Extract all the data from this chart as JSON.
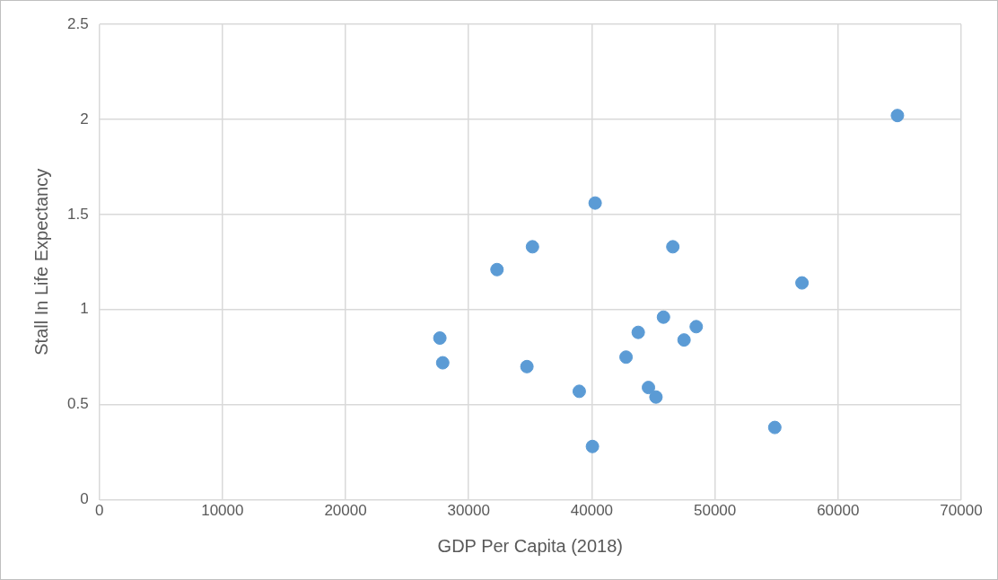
{
  "chart_data": {
    "type": "scatter",
    "xlabel": "GDP Per Capita (2018)",
    "ylabel": "Stall In Life Expectancy",
    "series": [
      {
        "color": "#5b9bd5",
        "x": [
          27660,
          27890,
          32300,
          35180,
          34730,
          38980,
          40270,
          40050,
          42780,
          43770,
          44600,
          45210,
          45820,
          46580,
          47490,
          48480,
          54860,
          57070,
          64820
        ],
        "values": [
          0.85,
          0.72,
          1.21,
          1.33,
          0.7,
          0.57,
          1.56,
          0.28,
          0.75,
          0.88,
          0.59,
          0.54,
          0.96,
          1.33,
          0.84,
          0.91,
          0.38,
          1.14,
          2.02
        ]
      }
    ],
    "xlim": [
      0,
      70000
    ],
    "xticks": [
      0,
      10000,
      20000,
      30000,
      40000,
      50000,
      60000,
      70000
    ],
    "ylim": [
      0,
      2.5
    ],
    "yticks": [
      0,
      0.5,
      1,
      1.5,
      2,
      2.5
    ],
    "grid": true,
    "marker": "circle"
  }
}
